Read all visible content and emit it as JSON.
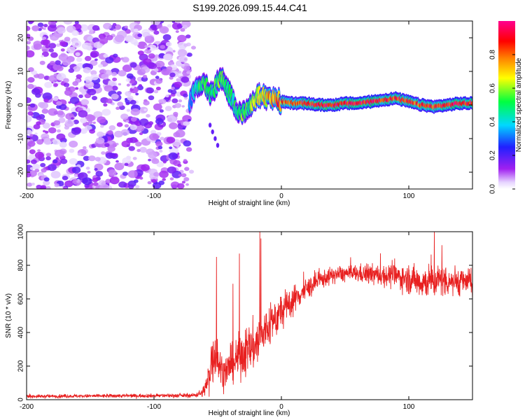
{
  "chart_data": [
    {
      "type": "heatmap",
      "title": "S199.2026.099.15.44.C41",
      "xlabel": "Height of straight line (km)",
      "ylabel": "Frequency (Hz)",
      "xlim": [
        -200,
        150
      ],
      "ylim": [
        -25,
        25
      ],
      "xticks": [
        -200,
        -100,
        0,
        100
      ],
      "yticks": [
        -20,
        -10,
        0,
        10,
        20
      ],
      "colorbar": {
        "label": "Normalized spectral amplitude",
        "range": [
          0.0,
          1.0
        ],
        "ticks": [
          0.0,
          0.2,
          0.4,
          0.6,
          0.8
        ],
        "tick_labels": [
          "0.0",
          "0.2",
          "0.4",
          "0.6",
          "0.8"
        ],
        "colormap": [
          "#ffffff",
          "#a020f0",
          "#3030ff",
          "#00e5ff",
          "#00ff40",
          "#ffff00",
          "#ff8000",
          "#ff0000",
          "#ff00a0"
        ]
      },
      "noise_region": {
        "x": [
          -200,
          -72
        ],
        "y": [
          -25,
          25
        ],
        "level": 0.18
      },
      "ridge": {
        "x": [
          -72,
          -68,
          -64,
          -60,
          -56,
          -52,
          -48,
          -44,
          -40,
          -36,
          -32,
          -28,
          -24,
          -20,
          -16,
          -12,
          -8,
          -4,
          0,
          10,
          20,
          30,
          40,
          50,
          60,
          70,
          80,
          90,
          100,
          110,
          120,
          130,
          140,
          150
        ],
        "freq": [
          1,
          4,
          7,
          6,
          3,
          5,
          8,
          6,
          3,
          -1,
          -3,
          -2,
          0,
          2,
          3,
          2.5,
          2,
          1.5,
          1,
          0.5,
          0.5,
          0,
          0,
          0.5,
          0.5,
          1,
          1.5,
          2,
          1,
          0,
          -0.5,
          0,
          0.5,
          0.5
        ],
        "amp": [
          0.3,
          0.4,
          0.5,
          0.55,
          0.45,
          0.5,
          0.55,
          0.5,
          0.45,
          0.5,
          0.55,
          0.5,
          0.55,
          0.6,
          0.65,
          0.7,
          0.75,
          0.8,
          0.8,
          0.85,
          0.9,
          0.95,
          0.95,
          0.9,
          0.9,
          0.95,
          0.9,
          0.85,
          0.85,
          0.85,
          0.85,
          0.85,
          0.9,
          0.9
        ]
      },
      "scatter_branch": {
        "x": [
          -56,
          -54,
          -52,
          -50
        ],
        "freq": [
          -6,
          -8,
          -10,
          -12
        ]
      }
    },
    {
      "type": "line",
      "title": "",
      "xlabel": "Height of straight line (km)",
      "ylabel": "SNR (10 * v/v)",
      "xlim": [
        -200,
        150
      ],
      "ylim": [
        0,
        1000
      ],
      "xticks": [
        -200,
        -100,
        0,
        100
      ],
      "yticks": [
        0,
        200,
        400,
        600,
        800,
        1000
      ],
      "color": "#e82020",
      "envelope": {
        "x": [
          -200,
          -70,
          -62,
          -58,
          -55,
          -53,
          -50,
          -45,
          -40,
          -35,
          -30,
          -25,
          -20,
          -15,
          -10,
          -5,
          0,
          10,
          20,
          30,
          40,
          50,
          60,
          70,
          80,
          90,
          100,
          110,
          120,
          130,
          140,
          150
        ],
        "mean": [
          20,
          25,
          40,
          100,
          220,
          300,
          220,
          160,
          200,
          240,
          280,
          300,
          330,
          380,
          440,
          480,
          520,
          600,
          660,
          710,
          740,
          750,
          750,
          745,
          740,
          735,
          720,
          700,
          710,
          710,
          705,
          700
        ],
        "noise": [
          8,
          10,
          20,
          60,
          150,
          160,
          100,
          80,
          90,
          100,
          120,
          120,
          130,
          120,
          110,
          100,
          90,
          70,
          55,
          45,
          40,
          40,
          45,
          50,
          55,
          60,
          70,
          80,
          90,
          80,
          70,
          60
        ]
      },
      "spikes": [
        {
          "x": -51,
          "y": 850
        },
        {
          "x": -38,
          "y": 690
        },
        {
          "x": -33,
          "y": 870
        },
        {
          "x": -17,
          "y": 1000
        },
        {
          "x": -16,
          "y": 960
        },
        {
          "x": 120,
          "y": 1000
        },
        {
          "x": 126,
          "y": 920
        }
      ]
    }
  ]
}
